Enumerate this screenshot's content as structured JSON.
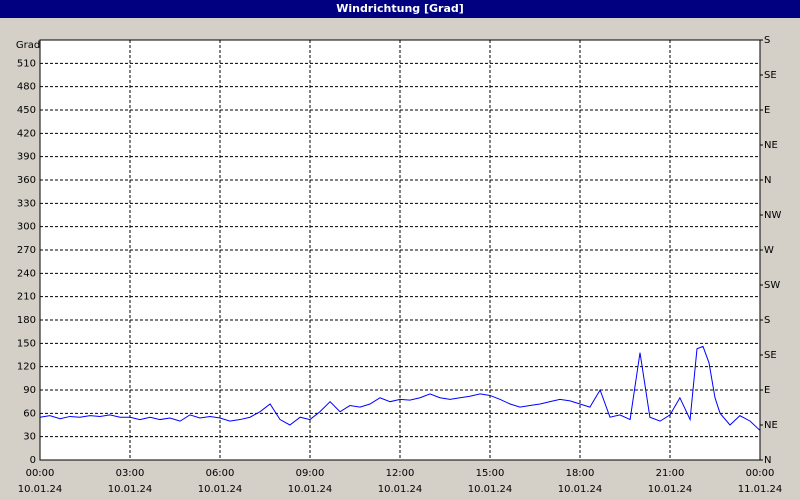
{
  "chart_data": {
    "type": "line",
    "title": "Windrichtung [Grad]",
    "y_label": "Grad",
    "x": [
      0,
      0.33,
      0.67,
      1,
      1.33,
      1.67,
      2,
      2.33,
      2.67,
      3,
      3.33,
      3.67,
      4,
      4.33,
      4.67,
      5,
      5.33,
      5.67,
      6,
      6.33,
      6.67,
      7,
      7.33,
      7.67,
      8,
      8.33,
      8.67,
      9,
      9.33,
      9.67,
      10,
      10.33,
      10.67,
      11,
      11.33,
      11.67,
      12,
      12.33,
      12.67,
      13,
      13.33,
      13.67,
      14,
      14.33,
      14.67,
      15,
      15.33,
      15.67,
      16,
      16.33,
      16.67,
      17,
      17.33,
      17.67,
      18,
      18.33,
      18.67,
      19,
      19.33,
      19.67,
      20,
      20.33,
      20.67,
      21,
      21.33,
      21.67,
      21.9,
      22.1,
      22.3,
      22.5,
      22.67,
      23,
      23.33,
      23.67,
      24
    ],
    "series": [
      {
        "color": "#0000ff",
        "values": [
          55,
          57,
          53,
          56,
          55,
          57,
          56,
          58,
          55,
          55,
          52,
          55,
          52,
          54,
          50,
          58,
          54,
          56,
          54,
          50,
          52,
          55,
          62,
          72,
          52,
          45,
          55,
          52,
          62,
          75,
          62,
          70,
          68,
          72,
          80,
          75,
          78,
          77,
          80,
          85,
          80,
          78,
          80,
          82,
          85,
          83,
          78,
          72,
          68,
          70,
          72,
          75,
          78,
          76,
          72,
          68,
          90,
          55,
          58,
          52,
          138,
          55,
          50,
          58,
          80,
          52,
          143,
          146,
          125,
          80,
          60,
          45,
          57,
          50,
          38
        ]
      }
    ],
    "xlim": [
      0,
      24
    ],
    "xticks": [
      {
        "value": 0,
        "label": "00:00",
        "date": "10.01.24"
      },
      {
        "value": 3,
        "label": "03:00",
        "date": "10.01.24"
      },
      {
        "value": 6,
        "label": "06:00",
        "date": "10.01.24"
      },
      {
        "value": 9,
        "label": "09:00",
        "date": "10.01.24"
      },
      {
        "value": 12,
        "label": "12:00",
        "date": "10.01.24"
      },
      {
        "value": 15,
        "label": "15:00",
        "date": "10.01.24"
      },
      {
        "value": 18,
        "label": "18:00",
        "date": "10.01.24"
      },
      {
        "value": 21,
        "label": "21:00",
        "date": "10.01.24"
      },
      {
        "value": 24,
        "label": "00:00",
        "date": "11.01.24"
      }
    ],
    "ylim": [
      0,
      540
    ],
    "yticks": [
      0,
      30,
      60,
      90,
      120,
      150,
      180,
      210,
      240,
      270,
      300,
      330,
      360,
      390,
      420,
      450,
      480,
      510
    ],
    "y2lim": [
      0,
      540
    ],
    "y2ticks": [
      {
        "value": 0,
        "label": "N"
      },
      {
        "value": 45,
        "label": "NE"
      },
      {
        "value": 90,
        "label": "E"
      },
      {
        "value": 135,
        "label": "SE"
      },
      {
        "value": 180,
        "label": "S"
      },
      {
        "value": 225,
        "label": "SW"
      },
      {
        "value": 270,
        "label": "W"
      },
      {
        "value": 315,
        "label": "NW"
      },
      {
        "value": 360,
        "label": "N"
      },
      {
        "value": 405,
        "label": "NE"
      },
      {
        "value": 450,
        "label": "E"
      },
      {
        "value": 495,
        "label": "SE"
      },
      {
        "value": 540,
        "label": "S"
      }
    ],
    "grid": true
  }
}
